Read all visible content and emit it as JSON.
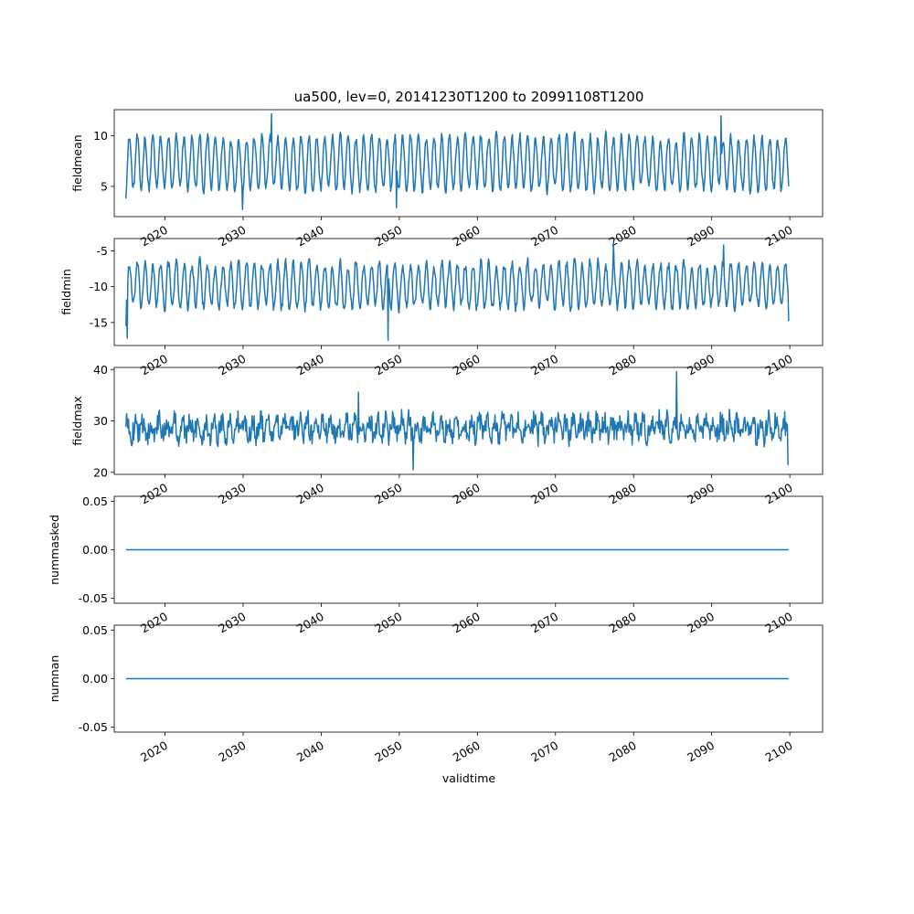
{
  "chart_data": {
    "type": "line",
    "title": "ua500, lev=0, 20141230T1200 to 20991108T1200",
    "xlabel": "validtime",
    "x_range": [
      "2014-12-30",
      "2099-11-08"
    ],
    "xlim": [
      2013.5,
      2104.2
    ],
    "xticks": [
      "2020",
      "2030",
      "2040",
      "2050",
      "2060",
      "2070",
      "2080",
      "2090",
      "2100"
    ],
    "line_color": "#1f77b4",
    "grid": false,
    "subplots": [
      {
        "ylabel": "fieldmean",
        "ylim": [
          2.0,
          12.6
        ],
        "yticks": [
          "5",
          "10"
        ],
        "pattern": "annual-cycle",
        "start_value": 3.8,
        "end_value": 5.0,
        "mean": 7.3,
        "amplitude": 2.6,
        "noise": 0.8,
        "min": 2.7,
        "max": 12.2,
        "spikes": [
          {
            "t": 2033.6,
            "value": 12.2
          },
          {
            "t": 2091.2,
            "value": 12.0
          },
          {
            "t": 2029.9,
            "value": 2.7
          },
          {
            "t": 2049.6,
            "value": 2.9
          }
        ]
      },
      {
        "ylabel": "fieldmin",
        "ylim": [
          -18.2,
          -3.3
        ],
        "yticks": [
          "-15",
          "-10",
          "-5"
        ],
        "pattern": "annual-cycle",
        "start_value": -15.5,
        "end_value": -14.8,
        "mean": -9.8,
        "amplitude": 3.0,
        "noise": 1.2,
        "min": -17.5,
        "max": -4.0,
        "spikes": [
          {
            "t": 2077.4,
            "value": -4.0
          },
          {
            "t": 2091.5,
            "value": -4.2
          },
          {
            "t": 2048.6,
            "value": -17.5
          },
          {
            "t": 2015.2,
            "value": -17.2
          }
        ]
      },
      {
        "ylabel": "fieldmax",
        "ylim": [
          19.6,
          40.4
        ],
        "yticks": [
          "20",
          "30",
          "40"
        ],
        "pattern": "noisy",
        "start_value": 28.8,
        "end_value": 21.5,
        "mean": 28.6,
        "amplitude": 1.5,
        "noise": 2.2,
        "min": 20.5,
        "max": 39.6,
        "spikes": [
          {
            "t": 2085.5,
            "value": 39.6
          },
          {
            "t": 2044.8,
            "value": 35.6
          },
          {
            "t": 2051.8,
            "value": 20.5
          },
          {
            "t": 2099.8,
            "value": 21.5
          }
        ]
      },
      {
        "ylabel": "nummasked",
        "ylim": [
          -0.055,
          0.055
        ],
        "yticks": [
          "-0.05",
          "0.00",
          "0.05"
        ],
        "pattern": "constant",
        "start_value": 0.0,
        "end_value": 0.0,
        "mean": 0.0,
        "amplitude": 0.0,
        "noise": 0.0,
        "spikes": []
      },
      {
        "ylabel": "numnan",
        "ylim": [
          -0.055,
          0.055
        ],
        "yticks": [
          "-0.05",
          "0.00",
          "0.05"
        ],
        "pattern": "constant",
        "start_value": 0.0,
        "end_value": 0.0,
        "mean": 0.0,
        "amplitude": 0.0,
        "noise": 0.0,
        "spikes": []
      }
    ]
  }
}
